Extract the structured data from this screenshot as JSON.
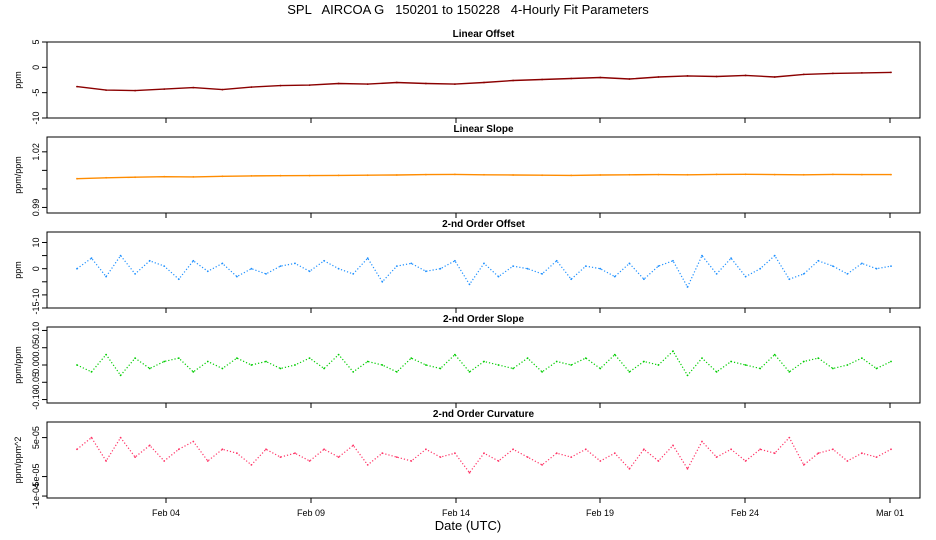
{
  "title": "SPL   AIRCOA G   150201 to 150228   4-Hourly Fit Parameters",
  "xlabel": "Date (UTC)",
  "chart_data": [
    {
      "type": "line",
      "title": "Linear Offset",
      "ylabel": "ppm",
      "yticks": [
        "5",
        "0",
        "-5",
        "-10"
      ],
      "ylim": [
        -10,
        5
      ],
      "xlim": [
        "2015-01-31 00:00",
        "2015-03-01 20:00"
      ],
      "x_ticks": [
        "Feb 04",
        "Feb 09",
        "Feb 14",
        "Feb 19",
        "Feb 24",
        "Mar 01"
      ],
      "color": "#8b0000",
      "style": "solid",
      "x": [
        "Feb 01",
        "Feb 02",
        "Feb 03",
        "Feb 04",
        "Feb 05",
        "Feb 06",
        "Feb 07",
        "Feb 08",
        "Feb 09",
        "Feb 10",
        "Feb 11",
        "Feb 12",
        "Feb 13",
        "Feb 14",
        "Feb 15",
        "Feb 16",
        "Feb 17",
        "Feb 18",
        "Feb 19",
        "Feb 20",
        "Feb 21",
        "Feb 22",
        "Feb 23",
        "Feb 24",
        "Feb 25",
        "Feb 26",
        "Feb 27",
        "Feb 28",
        "Mar 01"
      ],
      "values": [
        -3.8,
        -4.5,
        -4.6,
        -4.3,
        -4.0,
        -4.4,
        -3.9,
        -3.6,
        -3.5,
        -3.2,
        -3.3,
        -3.0,
        -3.2,
        -3.3,
        -3.0,
        -2.6,
        -2.4,
        -2.2,
        -2.0,
        -2.3,
        -1.9,
        -1.7,
        -1.8,
        -1.6,
        -1.9,
        -1.4,
        -1.2,
        -1.1,
        -1.0
      ]
    },
    {
      "type": "line",
      "title": "Linear Slope",
      "ylabel": "ppm/ppm",
      "yticks": [
        "1.02",
        "1.01",
        "1.00",
        "0.99"
      ],
      "tick_labels_shown": [
        "1.02",
        "0.99"
      ],
      "ylim": [
        0.987,
        1.028
      ],
      "xlim": [
        "2015-01-31 00:00",
        "2015-03-01 20:00"
      ],
      "x_ticks": [
        "Feb 04",
        "Feb 09",
        "Feb 14",
        "Feb 19",
        "Feb 24",
        "Mar 01"
      ],
      "color": "#ff8c00",
      "style": "solid",
      "x": [
        "Feb 01",
        "Feb 02",
        "Feb 03",
        "Feb 04",
        "Feb 05",
        "Feb 06",
        "Feb 07",
        "Feb 08",
        "Feb 09",
        "Feb 10",
        "Feb 11",
        "Feb 12",
        "Feb 13",
        "Feb 14",
        "Feb 15",
        "Feb 16",
        "Feb 17",
        "Feb 18",
        "Feb 19",
        "Feb 20",
        "Feb 21",
        "Feb 22",
        "Feb 23",
        "Feb 24",
        "Feb 25",
        "Feb 26",
        "Feb 27",
        "Feb 28",
        "Mar 01"
      ],
      "values": [
        1.0055,
        1.006,
        1.0063,
        1.0066,
        1.0065,
        1.0068,
        1.007,
        1.0071,
        1.0072,
        1.0073,
        1.0074,
        1.0075,
        1.0077,
        1.0078,
        1.0076,
        1.0075,
        1.0074,
        1.0073,
        1.0075,
        1.0076,
        1.0077,
        1.0076,
        1.0078,
        1.0079,
        1.0077,
        1.0076,
        1.0078,
        1.0077,
        1.0077
      ]
    },
    {
      "type": "line",
      "title": "2-nd Order Offset",
      "ylabel": "ppm",
      "yticks": [
        "10",
        "5",
        "0",
        "-5",
        "-10",
        "-15"
      ],
      "tick_labels_shown": [
        "10",
        "0",
        "-10",
        "-15"
      ],
      "ylim": [
        -15,
        14
      ],
      "xlim": [
        "2015-01-31 00:00",
        "2015-03-01 20:00"
      ],
      "x_ticks": [
        "Feb 04",
        "Feb 09",
        "Feb 14",
        "Feb 19",
        "Feb 24",
        "Mar 01"
      ],
      "color": "#1e90ff",
      "style": "dotted",
      "x": [
        "Feb 01",
        "Feb 01 12h",
        "Feb 02",
        "Feb 02 12h",
        "Feb 03",
        "Feb 03 12h",
        "Feb 04",
        "Feb 04 12h",
        "Feb 05",
        "Feb 05 12h",
        "Feb 06",
        "Feb 06 12h",
        "Feb 07",
        "Feb 07 12h",
        "Feb 08",
        "Feb 08 12h",
        "Feb 09",
        "Feb 09 12h",
        "Feb 10",
        "Feb 10 12h",
        "Feb 11",
        "Feb 11 12h",
        "Feb 12",
        "Feb 12 12h",
        "Feb 13",
        "Feb 13 12h",
        "Feb 14",
        "Feb 14 12h",
        "Feb 15",
        "Feb 15 12h",
        "Feb 16",
        "Feb 16 12h",
        "Feb 17",
        "Feb 17 12h",
        "Feb 18",
        "Feb 18 12h",
        "Feb 19",
        "Feb 19 12h",
        "Feb 20",
        "Feb 20 12h",
        "Feb 21",
        "Feb 21 12h",
        "Feb 22",
        "Feb 22 12h",
        "Feb 23",
        "Feb 23 12h",
        "Feb 24",
        "Feb 24 12h",
        "Feb 25",
        "Feb 25 12h",
        "Feb 26",
        "Feb 26 12h",
        "Feb 27",
        "Feb 27 12h",
        "Feb 28",
        "Feb 28 12h",
        "Mar 01"
      ],
      "values": [
        0,
        4,
        -3,
        5,
        -2,
        3,
        1,
        -4,
        3,
        -1,
        2,
        -3,
        0,
        -2,
        1,
        2,
        -1,
        3,
        0,
        -2,
        4,
        -5,
        1,
        2,
        -1,
        0,
        3,
        -6,
        2,
        -3,
        1,
        0,
        -2,
        3,
        -4,
        1,
        0,
        -3,
        2,
        -4,
        1,
        3,
        -7,
        5,
        -2,
        4,
        -3,
        0,
        5,
        -4,
        -2,
        3,
        1,
        -2,
        2,
        0,
        1
      ]
    },
    {
      "type": "line",
      "title": "2-nd Order Slope",
      "ylabel": "ppm/ppm",
      "yticks": [
        "0.10",
        "0.05",
        "0.00",
        "-0.05",
        "-0.10"
      ],
      "ylim": [
        -0.11,
        0.11
      ],
      "xlim": [
        "2015-01-31 00:00",
        "2015-03-01 20:00"
      ],
      "x_ticks": [
        "Feb 04",
        "Feb 09",
        "Feb 14",
        "Feb 19",
        "Feb 24",
        "Mar 01"
      ],
      "color": "#00cd00",
      "style": "dotted",
      "x": [
        "Feb 01",
        "Feb 01 12h",
        "Feb 02",
        "Feb 02 12h",
        "Feb 03",
        "Feb 03 12h",
        "Feb 04",
        "Feb 04 12h",
        "Feb 05",
        "Feb 05 12h",
        "Feb 06",
        "Feb 06 12h",
        "Feb 07",
        "Feb 07 12h",
        "Feb 08",
        "Feb 08 12h",
        "Feb 09",
        "Feb 09 12h",
        "Feb 10",
        "Feb 10 12h",
        "Feb 11",
        "Feb 11 12h",
        "Feb 12",
        "Feb 12 12h",
        "Feb 13",
        "Feb 13 12h",
        "Feb 14",
        "Feb 14 12h",
        "Feb 15",
        "Feb 15 12h",
        "Feb 16",
        "Feb 16 12h",
        "Feb 17",
        "Feb 17 12h",
        "Feb 18",
        "Feb 18 12h",
        "Feb 19",
        "Feb 19 12h",
        "Feb 20",
        "Feb 20 12h",
        "Feb 21",
        "Feb 21 12h",
        "Feb 22",
        "Feb 22 12h",
        "Feb 23",
        "Feb 23 12h",
        "Feb 24",
        "Feb 24 12h",
        "Feb 25",
        "Feb 25 12h",
        "Feb 26",
        "Feb 26 12h",
        "Feb 27",
        "Feb 27 12h",
        "Feb 28",
        "Feb 28 12h",
        "Mar 01"
      ],
      "values": [
        0.0,
        -0.02,
        0.03,
        -0.03,
        0.02,
        -0.01,
        0.01,
        0.02,
        -0.02,
        0.01,
        -0.01,
        0.02,
        0.0,
        0.01,
        -0.01,
        0.0,
        0.02,
        -0.01,
        0.03,
        -0.02,
        0.01,
        0.0,
        -0.02,
        0.02,
        0.0,
        -0.01,
        0.03,
        -0.02,
        0.01,
        0.0,
        -0.01,
        0.02,
        -0.02,
        0.01,
        0.0,
        0.02,
        -0.01,
        0.03,
        -0.02,
        0.01,
        0.0,
        0.04,
        -0.03,
        0.02,
        -0.02,
        0.01,
        0.0,
        -0.01,
        0.03,
        -0.02,
        0.01,
        0.02,
        -0.01,
        0.0,
        0.02,
        -0.01,
        0.01
      ]
    },
    {
      "type": "line",
      "title": "2-nd Order Curvature",
      "ylabel": "ppm/ppm^2",
      "yticks": [
        "5e-05",
        "-5e-05",
        "-1e-04"
      ],
      "ylim": [
        -0.000105,
        9e-05
      ],
      "xlim": [
        "2015-01-31 00:00",
        "2015-03-01 20:00"
      ],
      "x_ticks": [
        "Feb 04",
        "Feb 09",
        "Feb 14",
        "Feb 19",
        "Feb 24",
        "Mar 01"
      ],
      "color": "#ff3366",
      "style": "dotted",
      "x": [
        "Feb 01",
        "Feb 01 12h",
        "Feb 02",
        "Feb 02 12h",
        "Feb 03",
        "Feb 03 12h",
        "Feb 04",
        "Feb 04 12h",
        "Feb 05",
        "Feb 05 12h",
        "Feb 06",
        "Feb 06 12h",
        "Feb 07",
        "Feb 07 12h",
        "Feb 08",
        "Feb 08 12h",
        "Feb 09",
        "Feb 09 12h",
        "Feb 10",
        "Feb 10 12h",
        "Feb 11",
        "Feb 11 12h",
        "Feb 12",
        "Feb 12 12h",
        "Feb 13",
        "Feb 13 12h",
        "Feb 14",
        "Feb 14 12h",
        "Feb 15",
        "Feb 15 12h",
        "Feb 16",
        "Feb 16 12h",
        "Feb 17",
        "Feb 17 12h",
        "Feb 18",
        "Feb 18 12h",
        "Feb 19",
        "Feb 19 12h",
        "Feb 20",
        "Feb 20 12h",
        "Feb 21",
        "Feb 21 12h",
        "Feb 22",
        "Feb 22 12h",
        "Feb 23",
        "Feb 23 12h",
        "Feb 24",
        "Feb 24 12h",
        "Feb 25",
        "Feb 25 12h",
        "Feb 26",
        "Feb 26 12h",
        "Feb 27",
        "Feb 27 12h",
        "Feb 28",
        "Feb 28 12h",
        "Mar 01"
      ],
      "values": [
        2e-05,
        5e-05,
        -1e-05,
        5e-05,
        0.0,
        3e-05,
        -1e-05,
        2e-05,
        4e-05,
        -1e-05,
        2e-05,
        1e-05,
        -2e-05,
        2e-05,
        0.0,
        1e-05,
        -1e-05,
        2e-05,
        0.0,
        3e-05,
        -2e-05,
        1e-05,
        0.0,
        -1e-05,
        2e-05,
        0.0,
        1e-05,
        -4e-05,
        1e-05,
        -1e-05,
        2e-05,
        0.0,
        -2e-05,
        1e-05,
        0.0,
        2e-05,
        -1e-05,
        1e-05,
        -3e-05,
        2e-05,
        -1e-05,
        3e-05,
        -3e-05,
        4e-05,
        0.0,
        2e-05,
        -1e-05,
        2e-05,
        1e-05,
        5e-05,
        -2e-05,
        1e-05,
        2e-05,
        -1e-05,
        1e-05,
        0.0,
        2e-05
      ]
    }
  ]
}
